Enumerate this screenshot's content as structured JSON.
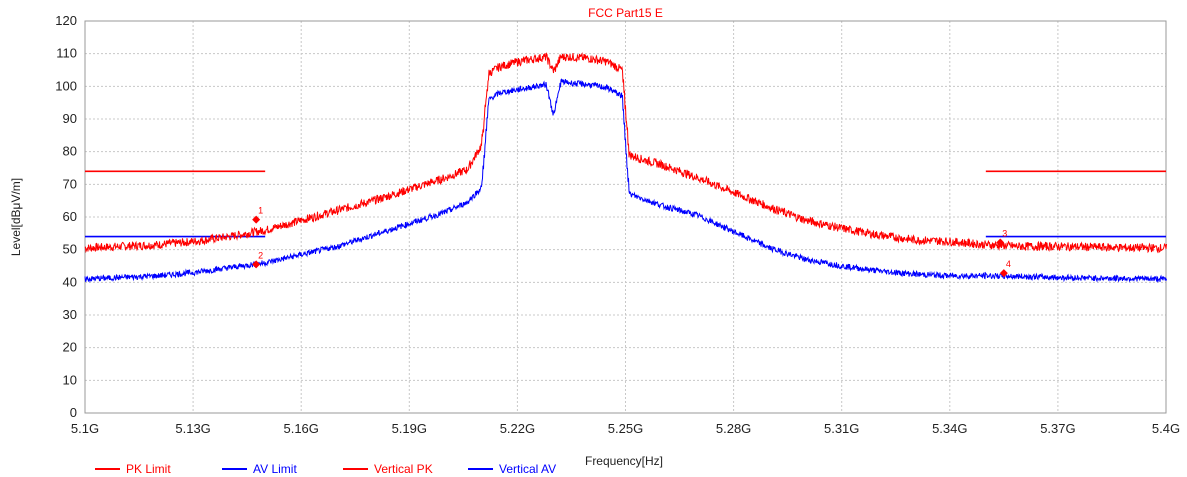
{
  "chart_data": {
    "type": "line",
    "title": "FCC Part15 E",
    "xlabel": "Frequency[Hz]",
    "ylabel": "Level[dBμV/m]",
    "xlim": [
      5.1,
      5.4
    ],
    "ylim": [
      0,
      120
    ],
    "x_ticks": [
      {
        "value": 5.1,
        "label": "5.1G"
      },
      {
        "value": 5.13,
        "label": "5.13G"
      },
      {
        "value": 5.16,
        "label": "5.16G"
      },
      {
        "value": 5.19,
        "label": "5.19G"
      },
      {
        "value": 5.22,
        "label": "5.22G"
      },
      {
        "value": 5.25,
        "label": "5.25G"
      },
      {
        "value": 5.28,
        "label": "5.28G"
      },
      {
        "value": 5.31,
        "label": "5.31G"
      },
      {
        "value": 5.34,
        "label": "5.34G"
      },
      {
        "value": 5.37,
        "label": "5.37G"
      },
      {
        "value": 5.4,
        "label": "5.4G"
      }
    ],
    "y_ticks": [
      0,
      10,
      20,
      30,
      40,
      50,
      60,
      70,
      80,
      90,
      100,
      110,
      120
    ],
    "grid": true,
    "legend_position": "bottom-left",
    "series": [
      {
        "name": "PK Limit",
        "color": "#ff0000",
        "style": "limit",
        "segments": [
          {
            "x": [
              5.1,
              5.15
            ],
            "y": [
              74,
              74
            ]
          },
          {
            "x": [
              5.35,
              5.4
            ],
            "y": [
              74,
              74
            ]
          }
        ]
      },
      {
        "name": "AV Limit",
        "color": "#0000ff",
        "style": "limit",
        "segments": [
          {
            "x": [
              5.1,
              5.15
            ],
            "y": [
              54,
              54
            ]
          },
          {
            "x": [
              5.35,
              5.4
            ],
            "y": [
              54,
              54
            ]
          }
        ]
      },
      {
        "name": "Vertical PK",
        "color": "#ff0000",
        "style": "trace",
        "x": [
          5.1,
          5.11,
          5.12,
          5.13,
          5.14,
          5.15,
          5.16,
          5.17,
          5.18,
          5.19,
          5.2,
          5.206,
          5.21,
          5.212,
          5.215,
          5.22,
          5.225,
          5.228,
          5.23,
          5.232,
          5.235,
          5.24,
          5.245,
          5.249,
          5.251,
          5.255,
          5.26,
          5.27,
          5.28,
          5.29,
          5.3,
          5.31,
          5.32,
          5.33,
          5.34,
          5.35,
          5.36,
          5.37,
          5.38,
          5.39,
          5.4
        ],
        "y": [
          50.5,
          51.0,
          51.5,
          52.5,
          54.0,
          56.0,
          59.0,
          62.0,
          65.0,
          68.5,
          72.0,
          74.5,
          82.0,
          104.0,
          106.0,
          107.5,
          108.5,
          109.0,
          104.5,
          109.0,
          109.0,
          108.5,
          107.5,
          105.0,
          79.0,
          77.5,
          76.0,
          72.0,
          67.5,
          63.0,
          59.0,
          56.5,
          54.5,
          53.0,
          52.5,
          51.5,
          51.0,
          51.0,
          50.8,
          50.6,
          50.5
        ]
      },
      {
        "name": "Vertical AV",
        "color": "#0000ff",
        "style": "trace",
        "x": [
          5.1,
          5.11,
          5.12,
          5.13,
          5.14,
          5.15,
          5.16,
          5.17,
          5.18,
          5.19,
          5.2,
          5.206,
          5.21,
          5.212,
          5.215,
          5.22,
          5.225,
          5.228,
          5.23,
          5.232,
          5.235,
          5.24,
          5.245,
          5.249,
          5.251,
          5.255,
          5.26,
          5.27,
          5.28,
          5.29,
          5.3,
          5.31,
          5.32,
          5.33,
          5.34,
          5.35,
          5.36,
          5.37,
          5.38,
          5.39,
          5.4
        ],
        "y": [
          41.0,
          41.5,
          42.0,
          43.0,
          44.5,
          46.0,
          48.5,
          51.0,
          54.5,
          58.0,
          61.5,
          64.5,
          69.0,
          96.0,
          98.0,
          99.0,
          100.0,
          100.5,
          91.0,
          101.5,
          101.0,
          100.5,
          99.5,
          97.0,
          67.0,
          65.5,
          63.5,
          60.5,
          55.5,
          50.5,
          47.0,
          45.0,
          43.5,
          42.5,
          42.0,
          42.0,
          41.8,
          41.5,
          41.3,
          41.2,
          41.0
        ]
      }
    ],
    "markers": [
      {
        "label": "1",
        "x": 5.1475,
        "y": 59.2,
        "color": "#ff0000"
      },
      {
        "label": "2",
        "x": 5.1475,
        "y": 45.5,
        "color": "#ff0000"
      },
      {
        "label": "3",
        "x": 5.354,
        "y": 52.2,
        "color": "#ff0000"
      },
      {
        "label": "4",
        "x": 5.355,
        "y": 42.8,
        "color": "#ff0000"
      }
    ]
  }
}
